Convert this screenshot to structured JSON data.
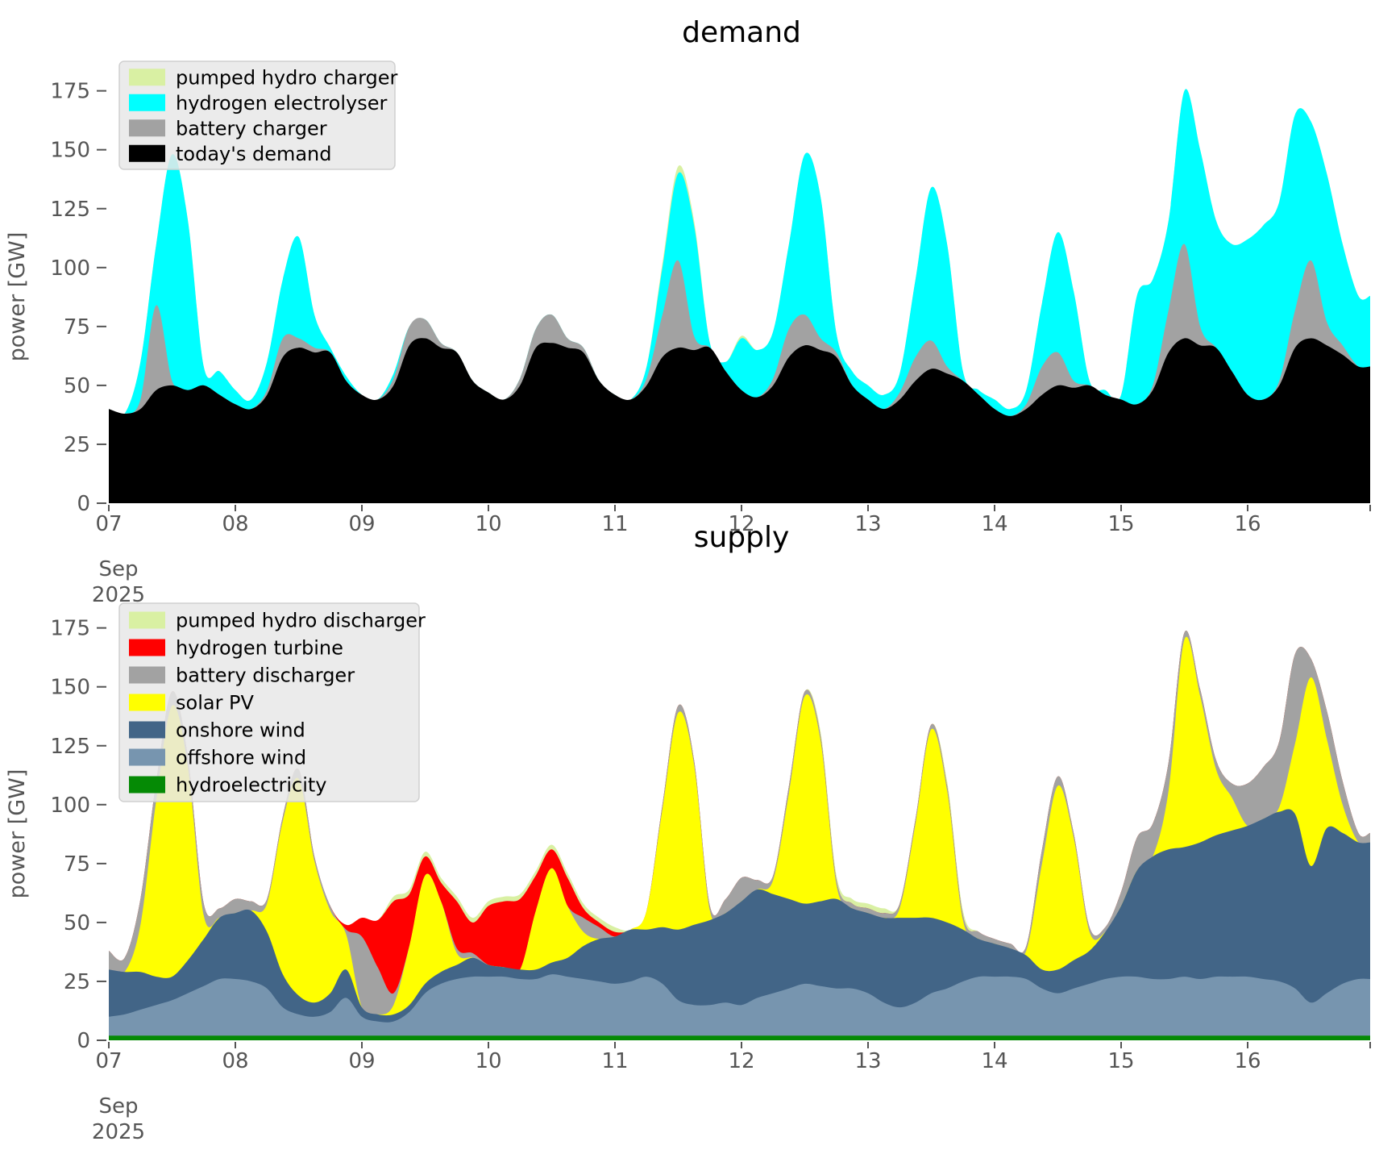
{
  "figure": {
    "background": "#ffffff",
    "axis_text_color": "#555555",
    "tick_color": "#555555",
    "legend_background": "#e8e8e8",
    "legend_border": "#d0d0d0"
  },
  "chart_data": [
    {
      "id": "demand",
      "type": "area",
      "stacked": true,
      "title": "demand",
      "ylabel": "power [GW]",
      "xlabel": "",
      "x_unit": "day of month",
      "x_axis_month": "Sep",
      "x_axis_year": "2025",
      "x_tick_days": [
        7,
        8,
        9,
        10,
        11,
        12,
        13,
        14,
        15,
        16
      ],
      "x_tick_labels": [
        "07",
        "08",
        "09",
        "10",
        "11",
        "12",
        "13",
        "14",
        "15",
        "16"
      ],
      "xlim": [
        7.0,
        17.0
      ],
      "y_ticks": [
        0,
        25,
        50,
        75,
        100,
        125,
        150,
        175
      ],
      "ylim": [
        0,
        200
      ],
      "grid": false,
      "legend_position": "upper-left",
      "legend": [
        {
          "label": "pumped hydro charger",
          "color": "#d9f0a3"
        },
        {
          "label": "hydrogen electrolyser",
          "color": "#00ffff"
        },
        {
          "label": "battery charger",
          "color": "#a2a2a2"
        },
        {
          "label": "today's demand",
          "color": "#000000"
        }
      ],
      "x_start": 7.0,
      "x_step_days": 0.125,
      "series": [
        {
          "name": "today's demand",
          "color": "#000000",
          "values": [
            40,
            38,
            40,
            48,
            50,
            48,
            50,
            46,
            42,
            40,
            46,
            62,
            66,
            64,
            64,
            52,
            46,
            44,
            50,
            67,
            70,
            66,
            64,
            52,
            47,
            44,
            50,
            66,
            68,
            66,
            64,
            52,
            46,
            44,
            50,
            62,
            66,
            65,
            66,
            56,
            48,
            45,
            50,
            62,
            67,
            65,
            62,
            50,
            44,
            40,
            44,
            52,
            57,
            55,
            52,
            46,
            40,
            37,
            40,
            46,
            50,
            49,
            50,
            46,
            44,
            42,
            48,
            64,
            70,
            67,
            66,
            56,
            46,
            44,
            50,
            66,
            70,
            67,
            63,
            58
          ]
        },
        {
          "name": "battery charger",
          "color": "#a2a2a2",
          "values": [
            0,
            0,
            4,
            36,
            2,
            0,
            0,
            0,
            0,
            0,
            2,
            8,
            4,
            2,
            0,
            0,
            0,
            0,
            3,
            8,
            8,
            2,
            0,
            0,
            0,
            0,
            3,
            8,
            12,
            4,
            2,
            0,
            0,
            0,
            3,
            18,
            37,
            6,
            0,
            0,
            0,
            0,
            3,
            12,
            13,
            5,
            2,
            0,
            0,
            0,
            3,
            10,
            12,
            3,
            0,
            0,
            0,
            0,
            2,
            12,
            14,
            3,
            0,
            0,
            0,
            0,
            2,
            18,
            40,
            8,
            0,
            0,
            0,
            0,
            2,
            16,
            33,
            10,
            4,
            0
          ]
        },
        {
          "name": "hydrogen electrolyser",
          "color": "#00ffff",
          "values": [
            0,
            0,
            16,
            26,
            96,
            72,
            8,
            10,
            6,
            4,
            12,
            25,
            43,
            14,
            2,
            2,
            0,
            0,
            2,
            0,
            0,
            0,
            0,
            0,
            0,
            0,
            0,
            0,
            0,
            0,
            0,
            0,
            0,
            0,
            5,
            20,
            37,
            47,
            2,
            4,
            22,
            20,
            20,
            36,
            68,
            60,
            8,
            6,
            6,
            6,
            8,
            33,
            65,
            52,
            4,
            2,
            4,
            3,
            6,
            27,
            51,
            38,
            2,
            2,
            2,
            46,
            45,
            38,
            65,
            75,
            54,
            54,
            66,
            74,
            76,
            83,
            59,
            63,
            43,
            30
          ]
        },
        {
          "name": "pumped hydro charger",
          "color": "#d9f0a3",
          "values": [
            0,
            0,
            0,
            0,
            0,
            0,
            0,
            0,
            0,
            0,
            0,
            0,
            0,
            0,
            0,
            0,
            0,
            0,
            0,
            0,
            0,
            0,
            0,
            0,
            0,
            0,
            0,
            0,
            0,
            0,
            0,
            0,
            0,
            0,
            0,
            2,
            3,
            2,
            0,
            0,
            1,
            0,
            0,
            0,
            0,
            0,
            0,
            0,
            0,
            0,
            0,
            0,
            0,
            0,
            0,
            0,
            0,
            0,
            0,
            0,
            0,
            0,
            0,
            0,
            0,
            0,
            0,
            0,
            0,
            0,
            0,
            0,
            0,
            0,
            0,
            0,
            0,
            0,
            0,
            0
          ]
        }
      ]
    },
    {
      "id": "supply",
      "type": "area",
      "stacked": true,
      "title": "supply",
      "ylabel": "power [GW]",
      "xlabel": "",
      "x_unit": "day of month",
      "x_axis_month": "Sep",
      "x_axis_year": "2025",
      "x_tick_days": [
        7,
        8,
        9,
        10,
        11,
        12,
        13,
        14,
        15,
        16
      ],
      "x_tick_labels": [
        "07",
        "08",
        "09",
        "10",
        "11",
        "12",
        "13",
        "14",
        "15",
        "16"
      ],
      "xlim": [
        7.0,
        17.0
      ],
      "y_ticks": [
        0,
        25,
        50,
        75,
        100,
        125,
        150,
        175
      ],
      "ylim": [
        0,
        200
      ],
      "grid": false,
      "legend_position": "upper-left",
      "legend": [
        {
          "label": "pumped hydro discharger",
          "color": "#d9f0a3"
        },
        {
          "label": "hydrogen turbine",
          "color": "#ff0000"
        },
        {
          "label": "battery discharger",
          "color": "#a2a2a2"
        },
        {
          "label": "solar PV",
          "color": "#ffff00"
        },
        {
          "label": "onshore wind",
          "color": "#426587"
        },
        {
          "label": "offshore wind",
          "color": "#7795af"
        },
        {
          "label": "hydroelectricity",
          "color": "#058a05"
        }
      ],
      "x_start": 7.0,
      "x_step_days": 0.125,
      "series": [
        {
          "name": "hydroelectricity",
          "color": "#058a05",
          "values": [
            2,
            2,
            2,
            2,
            2,
            2,
            2,
            2,
            2,
            2,
            2,
            2,
            2,
            2,
            2,
            2,
            2,
            2,
            2,
            2,
            2,
            2,
            2,
            2,
            2,
            2,
            2,
            2,
            2,
            2,
            2,
            2,
            2,
            2,
            2,
            2,
            2,
            2,
            2,
            2,
            2,
            2,
            2,
            2,
            2,
            2,
            2,
            2,
            2,
            2,
            2,
            2,
            2,
            2,
            2,
            2,
            2,
            2,
            2,
            2,
            2,
            2,
            2,
            2,
            2,
            2,
            2,
            2,
            2,
            2,
            2,
            2,
            2,
            2,
            2,
            2,
            2,
            2,
            2,
            2
          ]
        },
        {
          "name": "offshore wind",
          "color": "#7795af",
          "values": [
            8,
            9,
            11,
            13,
            15,
            18,
            21,
            24,
            24,
            23,
            20,
            12,
            9,
            8,
            10,
            16,
            8,
            6,
            6,
            10,
            18,
            22,
            24,
            25,
            25,
            25,
            24,
            24,
            26,
            25,
            24,
            23,
            22,
            23,
            25,
            22,
            15,
            13,
            13,
            14,
            13,
            16,
            18,
            20,
            22,
            21,
            20,
            20,
            18,
            14,
            12,
            14,
            18,
            20,
            23,
            25,
            25,
            25,
            24,
            20,
            18,
            20,
            22,
            24,
            25,
            25,
            24,
            24,
            25,
            24,
            25,
            25,
            25,
            24,
            23,
            20,
            14,
            18,
            22,
            24
          ]
        },
        {
          "name": "onshore wind",
          "color": "#426587",
          "values": [
            20,
            18,
            16,
            12,
            10,
            14,
            20,
            26,
            28,
            30,
            24,
            14,
            8,
            6,
            8,
            12,
            4,
            3,
            3,
            3,
            4,
            5,
            6,
            8,
            5,
            4,
            4,
            4,
            5,
            8,
            14,
            18,
            20,
            22,
            20,
            24,
            30,
            34,
            36,
            38,
            44,
            46,
            42,
            38,
            34,
            36,
            38,
            34,
            34,
            36,
            38,
            36,
            32,
            28,
            22,
            16,
            14,
            12,
            10,
            8,
            10,
            12,
            14,
            20,
            30,
            45,
            52,
            55,
            55,
            58,
            60,
            62,
            64,
            68,
            72,
            74,
            58,
            70,
            64,
            58
          ]
        },
        {
          "name": "solar PV",
          "color": "#ffff00",
          "values": [
            0,
            0,
            20,
            75,
            115,
            82,
            10,
            0,
            0,
            0,
            12,
            65,
            92,
            60,
            35,
            15,
            0,
            0,
            4,
            25,
            46,
            30,
            5,
            0,
            0,
            0,
            0,
            25,
            40,
            22,
            6,
            0,
            0,
            0,
            8,
            50,
            92,
            68,
            4,
            0,
            0,
            0,
            6,
            45,
            88,
            68,
            6,
            0,
            0,
            0,
            4,
            40,
            80,
            56,
            4,
            0,
            0,
            0,
            2,
            45,
            78,
            52,
            8,
            0,
            0,
            0,
            0,
            25,
            88,
            62,
            28,
            14,
            0,
            0,
            2,
            30,
            80,
            38,
            12,
            0
          ]
        },
        {
          "name": "battery discharger",
          "color": "#a2a2a2",
          "values": [
            8,
            6,
            11,
            8,
            6,
            4,
            5,
            4,
            6,
            4,
            2,
            2,
            4,
            2,
            2,
            2,
            30,
            20,
            5,
            0,
            0,
            0,
            2,
            2,
            0,
            0,
            0,
            0,
            0,
            0,
            6,
            5,
            0,
            0,
            0,
            2,
            3,
            2,
            2,
            6,
            10,
            4,
            2,
            3,
            2,
            2,
            2,
            2,
            2,
            2,
            2,
            2,
            2,
            2,
            2,
            3,
            2,
            2,
            2,
            6,
            4,
            2,
            2,
            2,
            6,
            14,
            14,
            12,
            3,
            3,
            4,
            6,
            18,
            22,
            28,
            38,
            8,
            12,
            10,
            4
          ]
        },
        {
          "name": "hydrogen turbine",
          "color": "#ff0000",
          "values": [
            0,
            0,
            0,
            0,
            0,
            0,
            0,
            0,
            0,
            0,
            0,
            0,
            0,
            0,
            0,
            2,
            8,
            20,
            39,
            22,
            8,
            8,
            20,
            13,
            25,
            28,
            30,
            15,
            8,
            12,
            4,
            2,
            2,
            0,
            0,
            0,
            0,
            0,
            0,
            0,
            0,
            0,
            0,
            0,
            0,
            0,
            0,
            0,
            0,
            0,
            0,
            0,
            0,
            0,
            0,
            0,
            0,
            0,
            0,
            0,
            0,
            0,
            0,
            0,
            0,
            0,
            0,
            0,
            0,
            0,
            0,
            0,
            0,
            0,
            0,
            0,
            0,
            0,
            0,
            0
          ]
        },
        {
          "name": "pumped hydro discharger",
          "color": "#d9f0a3",
          "values": [
            0,
            0,
            0,
            0,
            0,
            0,
            0,
            0,
            0,
            0,
            0,
            0,
            0,
            0,
            0,
            0,
            0,
            0,
            2,
            2,
            2,
            2,
            2,
            2,
            2,
            2,
            2,
            2,
            2,
            2,
            2,
            2,
            2,
            0,
            0,
            0,
            0,
            0,
            0,
            0,
            0,
            0,
            0,
            0,
            0,
            2,
            2,
            2,
            2,
            2,
            0,
            0,
            0,
            2,
            2,
            0,
            0,
            0,
            0,
            0,
            0,
            0,
            0,
            0,
            0,
            0,
            0,
            0,
            0,
            0,
            0,
            0,
            0,
            0,
            0,
            0,
            0,
            0,
            0,
            0
          ]
        }
      ]
    }
  ]
}
